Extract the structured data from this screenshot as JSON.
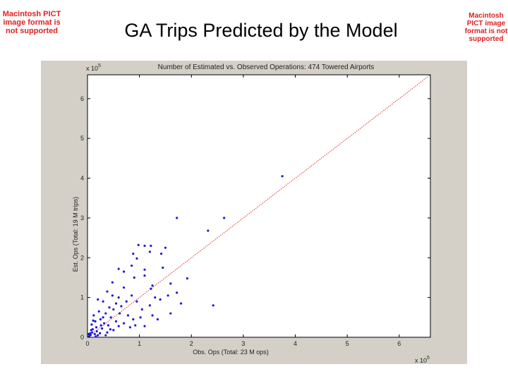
{
  "slide": {
    "title": "GA Trips Predicted by the Model",
    "pict_note_left": "Macintosh PICT image format is not supported",
    "pict_note_right": "Macintosh PICT image format is not supported"
  },
  "chart_data": {
    "type": "scatter",
    "title": "Number of Estimated vs. Observed Operations: 474 Towered Airports",
    "xlabel": "Obs. Ops (Total: 23 M ops)",
    "ylabel": "Est. Ops (Total: 19 M trips)",
    "x_exponent_label": "x 10",
    "x_exponent_power": "5",
    "y_exponent_label": "x 10",
    "y_exponent_power": "5",
    "x_unit_scale": 100000,
    "y_unit_scale": 100000,
    "xlim": [
      0,
      6.6
    ],
    "ylim": [
      0,
      6.6
    ],
    "xticks": [
      0,
      1,
      2,
      3,
      4,
      5,
      6
    ],
    "yticks": [
      0,
      1,
      2,
      3,
      4,
      5,
      6
    ],
    "xtick_labels": [
      "0",
      "1",
      "2",
      "3",
      "4",
      "5",
      "6"
    ],
    "ytick_labels": [
      "0",
      "1",
      "2",
      "3",
      "4",
      "5",
      "6"
    ],
    "reference_line": {
      "kind": "y=x",
      "color": "#e03030",
      "style": "dotted"
    },
    "series": [
      {
        "color": "#1a1ad8",
        "points": [
          [
            3.75,
            4.05
          ],
          [
            2.63,
            3.0
          ],
          [
            1.72,
            3.0
          ],
          [
            2.32,
            2.68
          ],
          [
            2.42,
            0.8
          ],
          [
            0.98,
            2.32
          ],
          [
            1.5,
            2.25
          ],
          [
            1.22,
            2.3
          ],
          [
            1.1,
            2.3
          ],
          [
            1.2,
            2.15
          ],
          [
            1.42,
            2.1
          ],
          [
            0.88,
            2.1
          ],
          [
            0.95,
            1.98
          ],
          [
            1.45,
            1.75
          ],
          [
            1.1,
            1.7
          ],
          [
            0.85,
            1.8
          ],
          [
            0.7,
            1.65
          ],
          [
            0.6,
            1.72
          ],
          [
            1.1,
            1.55
          ],
          [
            1.92,
            1.48
          ],
          [
            1.6,
            1.35
          ],
          [
            1.25,
            1.3
          ],
          [
            0.9,
            1.5
          ],
          [
            0.48,
            1.38
          ],
          [
            1.22,
            1.22
          ],
          [
            1.55,
            1.05
          ],
          [
            1.72,
            1.12
          ],
          [
            1.4,
            0.95
          ],
          [
            1.3,
            1.0
          ],
          [
            1.8,
            0.85
          ],
          [
            1.6,
            0.6
          ],
          [
            1.35,
            0.45
          ],
          [
            1.2,
            0.8
          ],
          [
            1.05,
            0.7
          ],
          [
            0.95,
            0.9
          ],
          [
            0.85,
            1.05
          ],
          [
            0.7,
            1.25
          ],
          [
            0.75,
            0.9
          ],
          [
            0.6,
            1.0
          ],
          [
            0.5,
            0.7
          ],
          [
            0.92,
            0.3
          ],
          [
            1.1,
            0.28
          ],
          [
            1.25,
            0.55
          ],
          [
            0.82,
            0.25
          ],
          [
            0.7,
            0.35
          ],
          [
            0.3,
            0.9
          ],
          [
            0.35,
            0.6
          ],
          [
            0.2,
            0.95
          ],
          [
            0.25,
            0.45
          ],
          [
            0.45,
            0.5
          ],
          [
            0.55,
            0.4
          ],
          [
            0.4,
            0.3
          ],
          [
            0.62,
            0.6
          ],
          [
            0.15,
            0.4
          ],
          [
            0.1,
            0.2
          ],
          [
            0.05,
            0.1
          ],
          [
            0.18,
            0.15
          ],
          [
            0.28,
            0.22
          ],
          [
            0.32,
            0.35
          ],
          [
            0.12,
            0.55
          ],
          [
            0.08,
            0.32
          ],
          [
            0.22,
            0.65
          ],
          [
            0.42,
            0.75
          ],
          [
            0.5,
            0.18
          ],
          [
            0.6,
            0.28
          ],
          [
            0.04,
            0.04
          ],
          [
            0.06,
            0.06
          ],
          [
            0.09,
            0.12
          ],
          [
            0.14,
            0.08
          ],
          [
            0.2,
            0.05
          ],
          [
            0.03,
            0.02
          ],
          [
            0.38,
            0.12
          ],
          [
            0.78,
            0.55
          ],
          [
            0.88,
            0.45
          ],
          [
            1.02,
            0.5
          ],
          [
            0.55,
            0.85
          ],
          [
            0.65,
            0.78
          ],
          [
            0.48,
            1.05
          ],
          [
            0.38,
            1.15
          ],
          [
            0.3,
            0.5
          ],
          [
            0.26,
            0.3
          ],
          [
            0.17,
            0.25
          ],
          [
            0.11,
            0.42
          ],
          [
            0.07,
            0.18
          ],
          [
            0.02,
            0.08
          ],
          [
            0.16,
            0.02
          ],
          [
            0.24,
            0.1
          ],
          [
            0.35,
            0.05
          ],
          [
            0.44,
            0.2
          ]
        ]
      }
    ]
  }
}
